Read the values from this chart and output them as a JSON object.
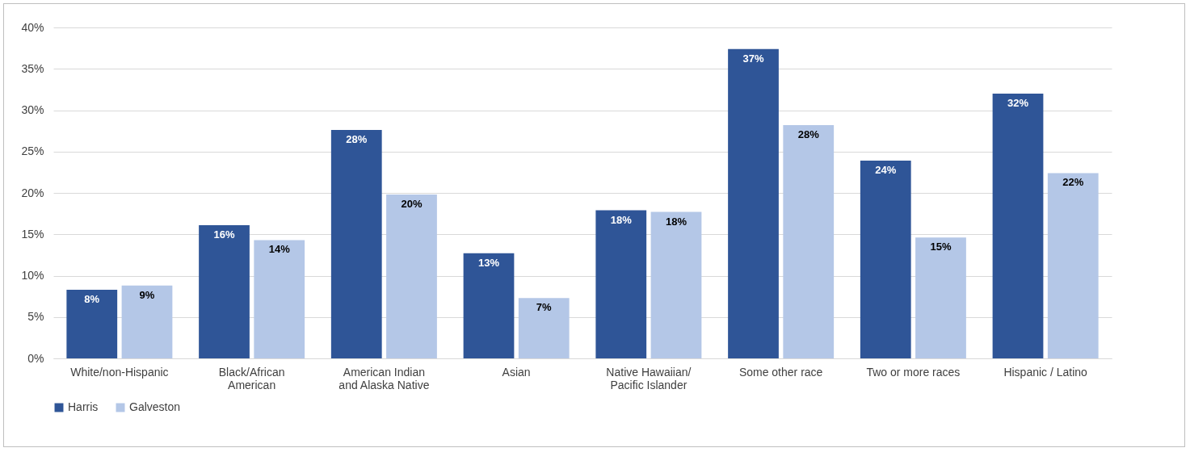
{
  "chart_data": {
    "type": "bar",
    "categories": [
      "White/non-Hispanic",
      "Black/African American",
      "American Indian and Alaska Native",
      "Asian",
      "Native Hawaiian/ Pacific Islander",
      "Some other race",
      "Two or more races",
      "Hispanic / Latino"
    ],
    "series": [
      {
        "name": "Harris",
        "color": "#2f5597",
        "values": [
          8.3,
          16.1,
          27.6,
          12.7,
          17.9,
          37.4,
          23.9,
          32.0
        ],
        "value_labels": [
          "8%",
          "16%",
          "28%",
          "13%",
          "18%",
          "37%",
          "24%",
          "32%"
        ]
      },
      {
        "name": "Galveston",
        "color": "#b4c7e7",
        "values": [
          8.8,
          14.3,
          19.8,
          7.3,
          17.7,
          28.2,
          14.6,
          22.4
        ],
        "value_labels": [
          "9%",
          "14%",
          "20%",
          "7%",
          "18%",
          "28%",
          "15%",
          "22%"
        ]
      }
    ],
    "ylim": [
      0,
      40
    ],
    "yticks": [
      {
        "value": 0,
        "label": "0%"
      },
      {
        "value": 5,
        "label": "5%"
      },
      {
        "value": 10,
        "label": "10%"
      },
      {
        "value": 15,
        "label": "15%"
      },
      {
        "value": 20,
        "label": "20%"
      },
      {
        "value": 25,
        "label": "25%"
      },
      {
        "value": 30,
        "label": "30%"
      },
      {
        "value": 35,
        "label": "35%"
      },
      {
        "value": 40,
        "label": "40%"
      }
    ],
    "grid": "y",
    "legend": "bottom"
  }
}
